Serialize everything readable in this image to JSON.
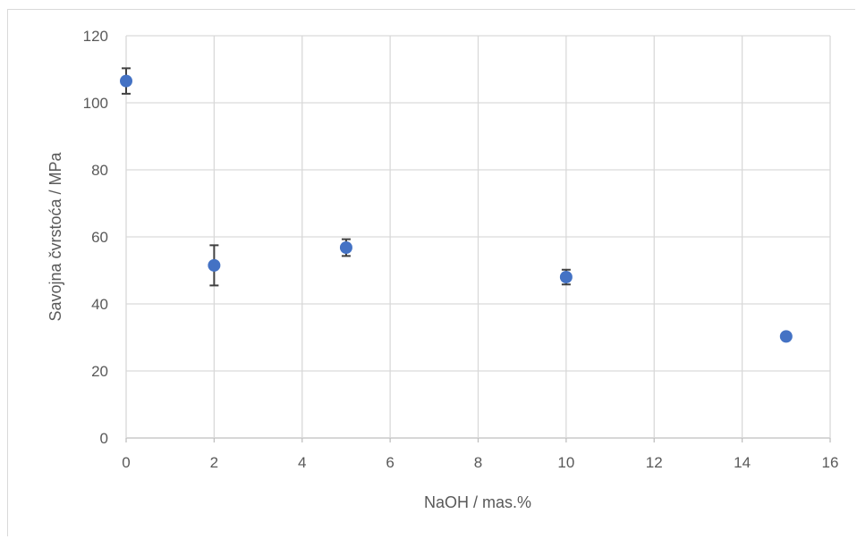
{
  "chart_data": {
    "type": "scatter",
    "title": "",
    "xlabel": "NaOH / mas.%",
    "ylabel": "Savojna čvrstoća / MPa",
    "xlim": [
      0,
      16
    ],
    "ylim": [
      0,
      120
    ],
    "xticks": [
      0,
      2,
      4,
      6,
      8,
      10,
      12,
      14,
      16
    ],
    "yticks": [
      0,
      20,
      40,
      60,
      80,
      100,
      120
    ],
    "grid": true,
    "legend": "none",
    "series": [
      {
        "color": "#4472c4",
        "points": [
          {
            "x": 0,
            "y": 106.5,
            "err": 3.8
          },
          {
            "x": 2,
            "y": 51.5,
            "err": 6.0
          },
          {
            "x": 5,
            "y": 56.8,
            "err": 2.5
          },
          {
            "x": 10,
            "y": 48.0,
            "err": 2.2
          },
          {
            "x": 15,
            "y": 30.3,
            "err": 0
          }
        ]
      }
    ]
  }
}
